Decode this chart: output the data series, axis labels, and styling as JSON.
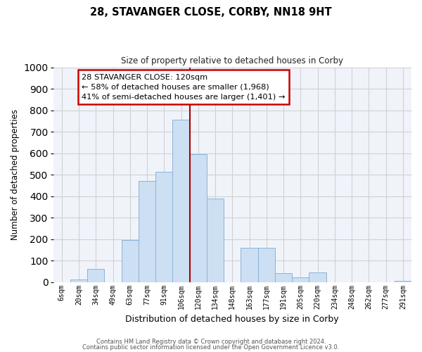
{
  "title": "28, STAVANGER CLOSE, CORBY, NN18 9HT",
  "subtitle": "Size of property relative to detached houses in Corby",
  "xlabel": "Distribution of detached houses by size in Corby",
  "ylabel": "Number of detached properties",
  "footnote1": "Contains HM Land Registry data © Crown copyright and database right 2024.",
  "footnote2": "Contains public sector information licensed under the Open Government Licence v3.0.",
  "annotation_title": "28 STAVANGER CLOSE: 120sqm",
  "annotation_line1": "← 58% of detached houses are smaller (1,968)",
  "annotation_line2": "41% of semi-detached houses are larger (1,401) →",
  "bar_labels": [
    "6sqm",
    "20sqm",
    "34sqm",
    "49sqm",
    "63sqm",
    "77sqm",
    "91sqm",
    "106sqm",
    "120sqm",
    "134sqm",
    "148sqm",
    "163sqm",
    "177sqm",
    "191sqm",
    "205sqm",
    "220sqm",
    "234sqm",
    "248sqm",
    "262sqm",
    "277sqm",
    "291sqm"
  ],
  "bar_values": [
    0,
    13,
    62,
    0,
    197,
    470,
    515,
    757,
    595,
    390,
    0,
    160,
    160,
    43,
    22,
    45,
    0,
    0,
    0,
    0,
    5
  ],
  "bar_color": "#cddff2",
  "bar_edge_color": "#8ab4d9",
  "vline_color": "#aa0000",
  "vline_idx": 8,
  "ylim": [
    0,
    1000
  ],
  "yticks": [
    0,
    100,
    200,
    300,
    400,
    500,
    600,
    700,
    800,
    900,
    1000
  ],
  "annotation_box_edge": "#cc0000",
  "grid_color": "#d0d0d0",
  "bg_color": "#f0f4fa"
}
